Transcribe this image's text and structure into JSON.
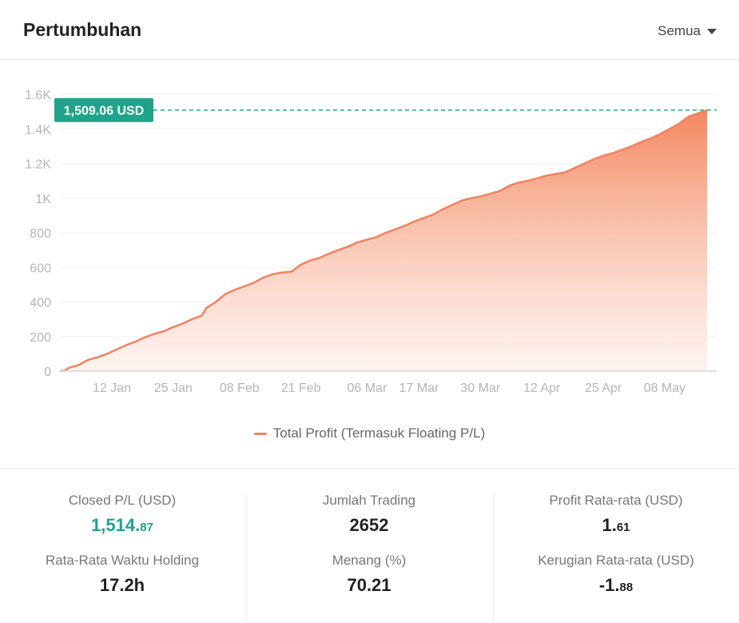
{
  "header": {
    "title": "Pertumbuhan",
    "filter_label": "Semua"
  },
  "chart_data": {
    "type": "area",
    "series": [
      {
        "name": "Total Profit (Termasuk Floating P/L)",
        "color": "#f08262",
        "points": [
          [
            "2024-01-01",
            0
          ],
          [
            "2024-01-02",
            2
          ],
          [
            "2024-01-03",
            20
          ],
          [
            "2024-01-05",
            35
          ],
          [
            "2024-01-07",
            65
          ],
          [
            "2024-01-09",
            80
          ],
          [
            "2024-01-11",
            100
          ],
          [
            "2024-01-13",
            125
          ],
          [
            "2024-01-15",
            150
          ],
          [
            "2024-01-17",
            170
          ],
          [
            "2024-01-19",
            195
          ],
          [
            "2024-01-21",
            215
          ],
          [
            "2024-01-23",
            230
          ],
          [
            "2024-01-25",
            255
          ],
          [
            "2024-01-27",
            275
          ],
          [
            "2024-01-29",
            300
          ],
          [
            "2024-01-31",
            320
          ],
          [
            "2024-02-01",
            365
          ],
          [
            "2024-02-03",
            400
          ],
          [
            "2024-02-05",
            445
          ],
          [
            "2024-02-07",
            470
          ],
          [
            "2024-02-09",
            490
          ],
          [
            "2024-02-11",
            510
          ],
          [
            "2024-02-13",
            540
          ],
          [
            "2024-02-15",
            560
          ],
          [
            "2024-02-17",
            570
          ],
          [
            "2024-02-19",
            575
          ],
          [
            "2024-02-21",
            615
          ],
          [
            "2024-02-23",
            640
          ],
          [
            "2024-02-25",
            655
          ],
          [
            "2024-02-27",
            680
          ],
          [
            "2024-02-29",
            700
          ],
          [
            "2024-03-02",
            720
          ],
          [
            "2024-03-04",
            745
          ],
          [
            "2024-03-06",
            760
          ],
          [
            "2024-03-08",
            775
          ],
          [
            "2024-03-10",
            800
          ],
          [
            "2024-03-12",
            820
          ],
          [
            "2024-03-14",
            840
          ],
          [
            "2024-03-16",
            865
          ],
          [
            "2024-03-18",
            885
          ],
          [
            "2024-03-20",
            905
          ],
          [
            "2024-03-22",
            935
          ],
          [
            "2024-03-24",
            960
          ],
          [
            "2024-03-26",
            985
          ],
          [
            "2024-03-28",
            1000
          ],
          [
            "2024-03-30",
            1010
          ],
          [
            "2024-04-01",
            1025
          ],
          [
            "2024-04-03",
            1040
          ],
          [
            "2024-04-05",
            1070
          ],
          [
            "2024-04-07",
            1090
          ],
          [
            "2024-04-09",
            1100
          ],
          [
            "2024-04-11",
            1115
          ],
          [
            "2024-04-13",
            1130
          ],
          [
            "2024-04-15",
            1140
          ],
          [
            "2024-04-17",
            1150
          ],
          [
            "2024-04-19",
            1175
          ],
          [
            "2024-04-21",
            1200
          ],
          [
            "2024-04-23",
            1225
          ],
          [
            "2024-04-25",
            1245
          ],
          [
            "2024-04-27",
            1260
          ],
          [
            "2024-04-29",
            1280
          ],
          [
            "2024-05-01",
            1300
          ],
          [
            "2024-05-03",
            1325
          ],
          [
            "2024-05-05",
            1345
          ],
          [
            "2024-05-07",
            1370
          ],
          [
            "2024-05-09",
            1400
          ],
          [
            "2024-05-11",
            1430
          ],
          [
            "2024-05-13",
            1470
          ],
          [
            "2024-05-15",
            1490
          ],
          [
            "2024-05-17",
            1509.06
          ]
        ]
      }
    ],
    "x_ticks": [
      {
        "date": "2024-01-12",
        "label": "12 Jan"
      },
      {
        "date": "2024-01-25",
        "label": "25 Jan"
      },
      {
        "date": "2024-02-08",
        "label": "08 Feb"
      },
      {
        "date": "2024-02-21",
        "label": "21 Feb"
      },
      {
        "date": "2024-03-06",
        "label": "06 Mar"
      },
      {
        "date": "2024-03-17",
        "label": "17 Mar"
      },
      {
        "date": "2024-03-30",
        "label": "30 Mar"
      },
      {
        "date": "2024-04-12",
        "label": "12 Apr"
      },
      {
        "date": "2024-04-25",
        "label": "25 Apr"
      },
      {
        "date": "2024-05-08",
        "label": "08 May"
      }
    ],
    "xlim": [
      "2024-01-01",
      "2024-05-19"
    ],
    "y_ticks": [
      {
        "value": 0,
        "label": "0"
      },
      {
        "value": 200,
        "label": "200"
      },
      {
        "value": 400,
        "label": "400"
      },
      {
        "value": 600,
        "label": "600"
      },
      {
        "value": 800,
        "label": "800"
      },
      {
        "value": 1000,
        "label": "1K"
      },
      {
        "value": 1200,
        "label": "1.2K"
      },
      {
        "value": 1400,
        "label": "1.4K"
      },
      {
        "value": 1600,
        "label": "1.6K"
      }
    ],
    "ylim": [
      0,
      1600
    ],
    "grid": true,
    "legend_position": "bottom",
    "annotation": {
      "value": 1509.06,
      "label": "1,509.06 USD",
      "color": "#1fa38a"
    }
  },
  "stats": {
    "closed_pl": {
      "label": "Closed P/L (USD)",
      "int": "1,514.",
      "dec": "87"
    },
    "avg_holding": {
      "label": "Rata-Rata Waktu Holding",
      "value": "17.2h"
    },
    "trade_count": {
      "label": "Jumlah Trading",
      "value": "2652"
    },
    "win_rate": {
      "label": "Menang (%)",
      "value": "70.21"
    },
    "avg_profit": {
      "label": "Profit Rata-rata (USD)",
      "int": "1.",
      "dec": "61"
    },
    "avg_loss": {
      "label": "Kerugian Rata-rata (USD)",
      "int": "-1.",
      "dec": "88"
    }
  }
}
